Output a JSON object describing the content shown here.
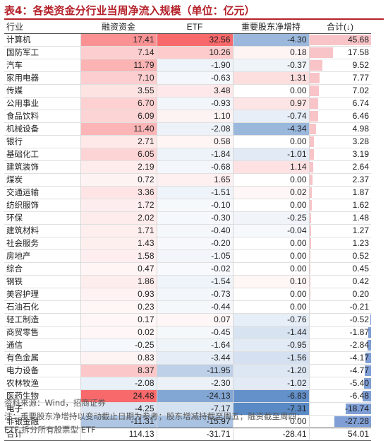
{
  "title": "表4：各类资金分行业当周净流入规模（单位：亿元）",
  "table": {
    "headers": [
      "行业",
      "融资资金",
      "ETF",
      "重要股东净增持",
      "合计(↓)"
    ],
    "rows": [
      {
        "name": "计算机",
        "margin": "17.41",
        "etf": "32.56",
        "holder": "-4.30",
        "total": "45.68"
      },
      {
        "name": "国防军工",
        "margin": "7.14",
        "etf": "10.26",
        "holder": "0.18",
        "total": "17.58"
      },
      {
        "name": "汽车",
        "margin": "11.79",
        "etf": "-1.90",
        "holder": "-0.37",
        "total": "9.52"
      },
      {
        "name": "家用电器",
        "margin": "7.10",
        "etf": "-0.63",
        "holder": "1.31",
        "total": "7.77"
      },
      {
        "name": "传媒",
        "margin": "3.55",
        "etf": "3.48",
        "holder": "0.00",
        "total": "7.02"
      },
      {
        "name": "公用事业",
        "margin": "6.70",
        "etf": "-0.93",
        "holder": "0.97",
        "total": "6.74"
      },
      {
        "name": "食品饮料",
        "margin": "6.09",
        "etf": "1.10",
        "holder": "-0.74",
        "total": "6.46"
      },
      {
        "name": "机械设备",
        "margin": "11.40",
        "etf": "-2.08",
        "holder": "-4.34",
        "total": "4.98"
      },
      {
        "name": "银行",
        "margin": "2.71",
        "etf": "0.58",
        "holder": "0.00",
        "total": "3.28"
      },
      {
        "name": "基础化工",
        "margin": "6.05",
        "etf": "-1.84",
        "holder": "-1.01",
        "total": "3.19"
      },
      {
        "name": "建筑装饰",
        "margin": "2.19",
        "etf": "-0.68",
        "holder": "1.14",
        "total": "2.64"
      },
      {
        "name": "煤炭",
        "margin": "0.72",
        "etf": "1.65",
        "holder": "0.00",
        "total": "2.37"
      },
      {
        "name": "交通运输",
        "margin": "3.36",
        "etf": "-1.51",
        "holder": "0.02",
        "total": "1.87"
      },
      {
        "name": "纺织服饰",
        "margin": "1.72",
        "etf": "-0.10",
        "holder": "0.00",
        "total": "1.62"
      },
      {
        "name": "环保",
        "margin": "2.02",
        "etf": "-0.30",
        "holder": "-0.25",
        "total": "1.48"
      },
      {
        "name": "建筑材料",
        "margin": "1.71",
        "etf": "-0.40",
        "holder": "-0.04",
        "total": "1.27"
      },
      {
        "name": "社会服务",
        "margin": "1.43",
        "etf": "-0.20",
        "holder": "0.00",
        "total": "1.23"
      },
      {
        "name": "房地产",
        "margin": "1.58",
        "etf": "-1.05",
        "holder": "0.00",
        "total": "0.52"
      },
      {
        "name": "综合",
        "margin": "0.47",
        "etf": "-0.02",
        "holder": "0.00",
        "total": "0.45"
      },
      {
        "name": "钢铁",
        "margin": "1.86",
        "etf": "-1.54",
        "holder": "0.10",
        "total": "0.42"
      },
      {
        "name": "美容护理",
        "margin": "0.93",
        "etf": "-0.73",
        "holder": "0.00",
        "total": "0.20"
      },
      {
        "name": "石油石化",
        "margin": "0.23",
        "etf": "-0.44",
        "holder": "0.00",
        "total": "-0.21"
      },
      {
        "name": "轻工制造",
        "margin": "0.17",
        "etf": "0.07",
        "holder": "-0.76",
        "total": "-0.52"
      },
      {
        "name": "商贸零售",
        "margin": "0.02",
        "etf": "-0.45",
        "holder": "-1.44",
        "total": "-1.87"
      },
      {
        "name": "通信",
        "margin": "-0.25",
        "etf": "-1.64",
        "holder": "-0.95",
        "total": "-2.84"
      },
      {
        "name": "有色金属",
        "margin": "0.83",
        "etf": "-3.44",
        "holder": "-1.56",
        "total": "-4.17"
      },
      {
        "name": "电力设备",
        "margin": "8.37",
        "etf": "-11.95",
        "holder": "-1.20",
        "total": "-4.77"
      },
      {
        "name": "农林牧渔",
        "margin": "-2.08",
        "etf": "-2.30",
        "holder": "-1.02",
        "total": "-5.40"
      },
      {
        "name": "医药生物",
        "margin": "24.48",
        "etf": "-24.13",
        "holder": "-6.83",
        "total": "-6.48"
      },
      {
        "name": "电子",
        "margin": "-4.25",
        "etf": "-7.17",
        "holder": "-7.31",
        "total": "-18.74"
      },
      {
        "name": "非银金融",
        "margin": "-11.31",
        "etf": "-15.97",
        "holder": "0.00",
        "total": "-27.28"
      }
    ],
    "footer": {
      "name": "合计",
      "margin": "114.13",
      "etf": "-31.71",
      "holder": "-28.41",
      "total": "54.01"
    }
  },
  "colors": {
    "positive": "#f8696b",
    "negative": "#5a8ac6",
    "total_pos_bar": "#f8c4c7",
    "total_neg_bar": "#7f9fd6",
    "title": "#b5222b"
  },
  "notes": [
    "资料来源：Wind，招商证券",
    "注：重要股东净增持以变动截止日期为参考；股东增减持截至周五；融资截至周四；",
    "ETF 拆分所有股票型 ETF"
  ]
}
